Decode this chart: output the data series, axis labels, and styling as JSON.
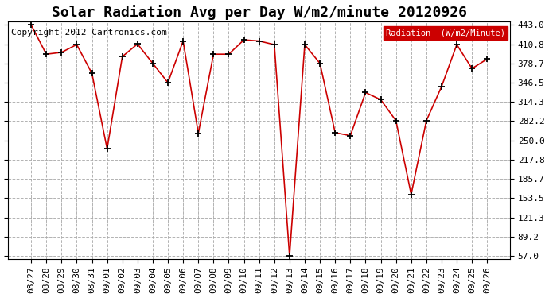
{
  "title": "Solar Radiation Avg per Day W/m2/minute 20120926",
  "copyright_text": "Copyright 2012 Cartronics.com",
  "legend_label": "Radiation  (W/m2/Minute)",
  "dates": [
    "08/27",
    "08/28",
    "08/29",
    "08/30",
    "08/31",
    "09/01",
    "09/02",
    "09/03",
    "09/04",
    "09/05",
    "09/06",
    "09/07",
    "09/08",
    "09/09",
    "09/10",
    "09/11",
    "09/12",
    "09/13",
    "09/14",
    "09/15",
    "09/16",
    "09/17",
    "09/18",
    "09/19",
    "09/20",
    "09/21",
    "09/22",
    "09/23",
    "09/24",
    "09/25",
    "09/26"
  ],
  "values": [
    443.0,
    394.0,
    397.0,
    410.0,
    362.0,
    236.0,
    390.0,
    411.0,
    378.7,
    346.5,
    416.0,
    262.0,
    394.0,
    394.0,
    418.0,
    416.0,
    410.0,
    57.0,
    410.0,
    378.7,
    263.0,
    258.0,
    330.0,
    318.0,
    283.0,
    160.0,
    283.0,
    340.0,
    410.0,
    370.0,
    386.0
  ],
  "ylim_min": 52.0,
  "ylim_max": 448.0,
  "yticks": [
    57.0,
    89.2,
    121.3,
    153.5,
    185.7,
    217.8,
    250.0,
    282.2,
    314.3,
    346.5,
    378.7,
    410.8,
    443.0
  ],
  "ytick_labels": [
    "57.0",
    "89.2",
    "121.3",
    "153.5",
    "185.7",
    "217.8",
    "250.0",
    "282.2",
    "314.3",
    "346.5",
    "378.7",
    "410.8",
    "443.0"
  ],
  "line_color": "#cc0000",
  "marker_color": "#000000",
  "background_color": "#ffffff",
  "grid_color": "#aaaaaa",
  "plot_bg_color": "#ffffff",
  "legend_bg_color": "#cc0000",
  "legend_text_color": "#ffffff",
  "title_fontsize": 13,
  "tick_fontsize": 8,
  "copyright_fontsize": 8
}
